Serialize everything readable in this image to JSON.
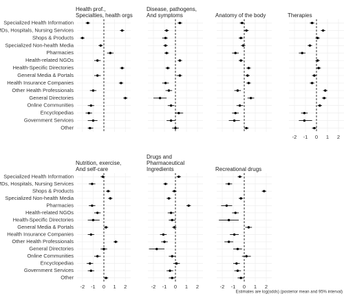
{
  "chart_data": {
    "type": "dot-interval",
    "categories": [
      "Specialized Health Information",
      "MDs, Hospitals, Nursing Services",
      "Shops & Products",
      "Specialized Non-health Media",
      "Pharmacies",
      "Health-related NGOs",
      "Health-Specific Directories",
      "General Media & Portals",
      "Health Insurance Companies",
      "Other Health Professionals",
      "General Directories",
      "Online Communities",
      "Encyclopedias",
      "Government Services",
      "Other"
    ],
    "xlim": [
      -2.5,
      2.5
    ],
    "xticks": [
      -2,
      -1,
      0,
      1,
      2
    ],
    "grid": true,
    "color": "#000000",
    "note": "Estimates are log(odds) (posterior mean and 95% interval)",
    "panels": [
      {
        "title": [
          "Health prof.,",
          "Specialties, health orgs"
        ],
        "values": [
          -1.5,
          1.7,
          -2.0,
          -0.3,
          0.6,
          -0.6,
          1.7,
          -0.6,
          1.6,
          -1.0,
          2.0,
          -1.2,
          -1.4,
          -1.0,
          -1.3
        ],
        "lower": [
          -1.7,
          1.5,
          -2.2,
          -0.5,
          0.3,
          -0.9,
          1.5,
          -0.9,
          1.4,
          -1.3,
          1.8,
          -1.5,
          -1.7,
          -1.5,
          -1.5
        ],
        "upper": [
          -1.3,
          1.9,
          -1.8,
          -0.1,
          0.9,
          -0.3,
          1.9,
          -0.3,
          1.8,
          -0.7,
          2.2,
          -0.9,
          -1.1,
          -0.6,
          -1.0
        ]
      },
      {
        "title": [
          "Disease, pathogens,",
          "And symptoms"
        ],
        "values": [
          0.4,
          -0.8,
          -0.9,
          -0.9,
          -0.8,
          0.4,
          -0.7,
          0.4,
          -0.9,
          -0.6,
          -1.4,
          -0.4,
          0.3,
          -0.4,
          0.0
        ],
        "lower": [
          0.2,
          -1.0,
          -1.2,
          -1.1,
          -1.0,
          0.2,
          -0.9,
          0.1,
          -1.2,
          -0.9,
          -2.0,
          -0.7,
          0.0,
          -0.8,
          -0.3
        ],
        "upper": [
          0.6,
          -0.6,
          -0.7,
          -0.7,
          -0.6,
          0.6,
          -0.5,
          0.6,
          -0.6,
          -0.3,
          -0.8,
          -0.1,
          0.7,
          0.0,
          0.3
        ]
      },
      {
        "title": [
          "Anatomy of the body"
        ],
        "values": [
          -0.2,
          0.2,
          -0.3,
          -0.1,
          -0.8,
          -0.3,
          0.4,
          0.3,
          0.4,
          -0.6,
          0.6,
          -0.4,
          -0.8,
          -0.9,
          0.2
        ],
        "lower": [
          -0.4,
          0.0,
          -0.5,
          -0.3,
          -1.1,
          -0.5,
          0.2,
          0.1,
          0.2,
          -0.9,
          0.3,
          -0.7,
          -1.1,
          -1.4,
          0.0
        ],
        "upper": [
          0.0,
          0.4,
          -0.1,
          0.1,
          -0.5,
          -0.1,
          0.6,
          0.5,
          0.6,
          -0.3,
          0.9,
          -0.1,
          -0.5,
          -0.4,
          0.4
        ]
      },
      {
        "title": [
          "Therapies"
        ],
        "values": [
          -0.4,
          0.6,
          0.1,
          -0.6,
          -1.3,
          0.1,
          0.2,
          -0.2,
          -0.4,
          0.8,
          0.7,
          0.3,
          -1.1,
          -1.1,
          -0.2
        ],
        "lower": [
          -0.6,
          0.4,
          -0.1,
          -0.8,
          -1.6,
          -0.1,
          0.0,
          -0.4,
          -0.6,
          0.6,
          0.5,
          0.1,
          -1.4,
          -1.6,
          -0.4
        ],
        "upper": [
          -0.2,
          0.8,
          0.3,
          -0.4,
          -1.0,
          0.3,
          0.4,
          0.0,
          -0.2,
          1.0,
          0.9,
          0.5,
          -0.8,
          -0.4,
          0.0
        ]
      },
      {
        "title": [
          "Nutrition, exercise,",
          "And self-care"
        ],
        "values": [
          -0.1,
          -1.1,
          0.4,
          0.6,
          -1.1,
          -0.6,
          -1.0,
          0.2,
          -1.2,
          1.1,
          0.0,
          -0.6,
          -1.3,
          -1.2,
          0.2
        ],
        "lower": [
          -0.3,
          -1.4,
          0.2,
          0.4,
          -1.4,
          -0.9,
          -1.5,
          0.0,
          -1.5,
          0.9,
          -0.3,
          -0.9,
          -1.6,
          -1.5,
          0.0
        ],
        "upper": [
          0.1,
          -0.8,
          0.6,
          0.8,
          -0.8,
          -0.3,
          -0.4,
          0.4,
          -0.9,
          1.3,
          0.3,
          -0.3,
          -1.0,
          -0.9,
          0.4
        ]
      },
      {
        "title": [
          "Drugs and",
          "Pharmaceutical",
          "Ingredients"
        ],
        "values": [
          0.3,
          -0.9,
          -0.1,
          -0.6,
          1.2,
          -0.4,
          -0.3,
          -0.1,
          -1.1,
          -1.0,
          -1.7,
          -0.3,
          0.1,
          -0.5,
          -0.3
        ],
        "lower": [
          0.1,
          -1.1,
          -0.3,
          -0.8,
          1.0,
          -0.7,
          -0.6,
          -0.3,
          -1.4,
          -1.3,
          -2.4,
          -0.6,
          -0.2,
          -0.8,
          -0.6
        ],
        "upper": [
          0.5,
          -0.7,
          0.1,
          -0.4,
          1.4,
          -0.1,
          0.0,
          0.1,
          -0.8,
          -0.7,
          -1.0,
          0.0,
          0.4,
          -0.2,
          0.0
        ]
      },
      {
        "title": [
          "Recreational drugs"
        ],
        "values": [
          -0.4,
          -1.4,
          1.8,
          -0.3,
          -1.6,
          -0.8,
          -1.4,
          0.4,
          -0.9,
          -1.4,
          -0.6,
          0.2,
          -0.7,
          -0.6,
          -0.3
        ],
        "lower": [
          -0.6,
          -1.7,
          1.6,
          -0.5,
          -2.1,
          -1.1,
          -2.3,
          0.1,
          -1.3,
          -1.8,
          -1.0,
          -0.2,
          -1.0,
          -0.9,
          -0.6
        ],
        "upper": [
          -0.2,
          -1.1,
          2.0,
          -0.1,
          -1.1,
          -0.5,
          -0.5,
          0.7,
          -0.5,
          -1.0,
          -0.2,
          0.6,
          -0.4,
          -0.3,
          0.0
        ]
      }
    ]
  }
}
